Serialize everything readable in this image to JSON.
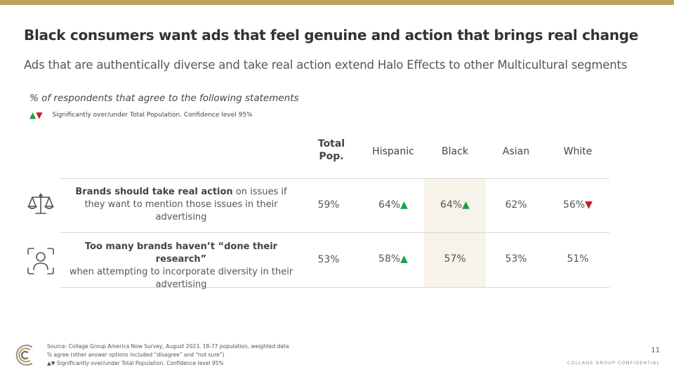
{
  "header": {
    "title": "Black consumers want ads that feel genuine and action that brings real change",
    "subtitle": "Ads that are authentically diverse and take real action extend Halo Effects to other Multicultural segments"
  },
  "question": "% of respondents that agree to the following statements",
  "legend": {
    "up_arrow": "▲",
    "down_arrow": "▼",
    "text": "Significantly over/under Total Population. Confidence level 95%"
  },
  "table": {
    "columns": [
      {
        "line1": "Total",
        "line2": "Pop."
      },
      {
        "line1": "Hispanic"
      },
      {
        "line1": "Black"
      },
      {
        "line1": "Asian"
      },
      {
        "line1": "White"
      }
    ],
    "rows": [
      {
        "icon": "scales-icon",
        "bold": "Brands should take real action",
        "rest_line1": " on issues if",
        "rest_line2": "they want to mention those issues in their",
        "rest_line3": "advertising",
        "values": [
          "59%",
          "64%",
          "64%",
          "62%",
          "56%"
        ],
        "arrows": [
          "",
          "▲",
          "▲",
          "",
          "▼"
        ]
      },
      {
        "icon": "face-scan-icon",
        "bold": "Too many brands haven’t “done their research”",
        "rest_line2": "when attempting to incorporate diversity in their",
        "rest_line3": "advertising",
        "values": [
          "53%",
          "58%",
          "57%",
          "53%",
          "51%"
        ],
        "arrows": [
          "",
          "▲",
          "",
          "",
          ""
        ]
      }
    ]
  },
  "footer": {
    "line1": "Source: Collage Group America Now Survey, August 2023, 18-77 population, weighted data",
    "line2": "% agree (other answer options included “disagree” and “not sure”)",
    "line3_arrows": "▲▼",
    "line3_text": " Significantly over/under Total Population. Confidence level 95%"
  },
  "page_number": "11",
  "confidential": "COLLAGE GROUP CONFIDENTIAL",
  "colors": {
    "accent": "#c0a05a",
    "up": "#16a34a",
    "down": "#c0201f",
    "highlight": "#f8f3ea"
  }
}
